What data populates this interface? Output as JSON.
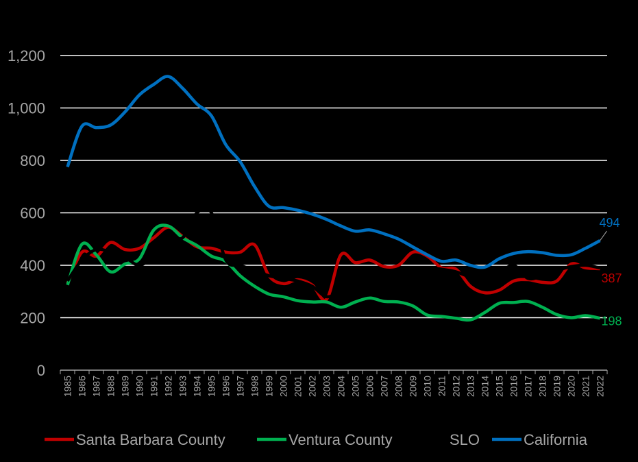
{
  "chart_data": {
    "type": "line",
    "categories": [
      "1985",
      "1986",
      "1987",
      "1988",
      "1989",
      "1990",
      "1991",
      "1992",
      "1993",
      "1994",
      "1995",
      "1996",
      "1997",
      "1998",
      "1999",
      "2000",
      "2001",
      "2002",
      "2003",
      "2004",
      "2005",
      "2006",
      "2007",
      "2008",
      "2009",
      "2010",
      "2011",
      "2012",
      "2013",
      "2014",
      "2015",
      "2016",
      "2017",
      "2018",
      "2019",
      "2020",
      "2021",
      "2022"
    ],
    "series": [
      {
        "name": "Santa Barbara County",
        "color": "#c00000",
        "values": [
          330,
          450,
          435,
          487,
          460,
          465,
          505,
          545,
          510,
          470,
          465,
          450,
          450,
          478,
          360,
          330,
          345,
          325,
          270,
          440,
          410,
          420,
          395,
          400,
          450,
          435,
          390,
          385,
          320,
          295,
          305,
          340,
          345,
          335,
          340,
          405,
          390,
          387
        ]
      },
      {
        "name": "Ventura County",
        "color": "#00b050",
        "values": [
          325,
          480,
          440,
          375,
          405,
          425,
          535,
          550,
          505,
          475,
          435,
          415,
          360,
          320,
          290,
          280,
          265,
          260,
          260,
          240,
          260,
          275,
          262,
          260,
          245,
          210,
          205,
          198,
          192,
          220,
          255,
          258,
          262,
          240,
          212,
          200,
          208,
          198
        ]
      },
      {
        "name": "SLO",
        "color": "#000000",
        "values": [
          340,
          420,
          460,
          450,
          430,
          400,
          440,
          510,
          505,
          600,
          600,
          420,
          400,
          380,
          360,
          350,
          340,
          320,
          280,
          300,
          320,
          330,
          340,
          360,
          380,
          390,
          385,
          375,
          355,
          350,
          370,
          400,
          350,
          360,
          380,
          395,
          400,
          390
        ]
      },
      {
        "name": "California",
        "color": "#0070c0",
        "values": [
          775,
          930,
          925,
          935,
          985,
          1050,
          1090,
          1120,
          1075,
          1015,
          970,
          860,
          795,
          700,
          625,
          620,
          610,
          595,
          575,
          550,
          530,
          535,
          520,
          500,
          470,
          440,
          415,
          420,
          400,
          393,
          425,
          445,
          452,
          448,
          438,
          440,
          465,
          494
        ]
      }
    ],
    "end_labels": [
      0,
      1,
      3
    ],
    "ylim": [
      0,
      1200
    ],
    "yticks": [
      0,
      200,
      400,
      600,
      800,
      {
        "value": 1000,
        "label": "1,000"
      },
      {
        "value": 1200,
        "label": "1,200"
      }
    ],
    "grid": true
  }
}
